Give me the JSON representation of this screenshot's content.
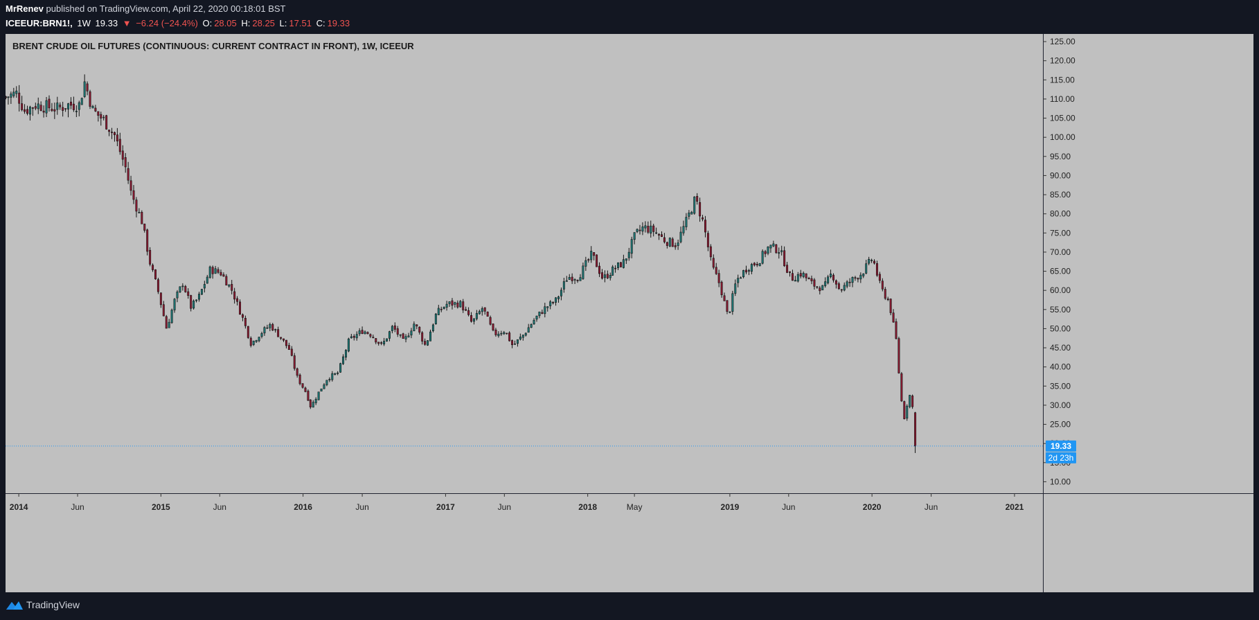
{
  "header": {
    "author": "MrRenev",
    "published": "published on TradingView.com, April 22, 2020 00:18:01 BST",
    "symbol": "ICEEUR:BRN1!,",
    "interval": "1W",
    "last": "19.33",
    "change_arrow": "▼",
    "change": "−6.24 (−24.4%)",
    "o_label": "O:",
    "o_value": "28.05",
    "h_label": "H:",
    "h_value": "28.25",
    "l_label": "L:",
    "l_value": "17.51",
    "c_label": "C:",
    "c_value": "19.33"
  },
  "footer": {
    "brand": "TradingView",
    "logo_icon": "tradingview-logo-icon"
  },
  "colors": {
    "chart_bg": "#c0c0c0",
    "candle_up": "#1e7a78",
    "candle_down": "#8e1a32",
    "price_tag": "#2196f3",
    "negative": "#ef5350"
  },
  "chart_data": {
    "type": "candlestick",
    "title": "BRENT CRUDE OIL FUTURES (CONTINUOUS: CURRENT CONTRACT IN FRONT), 1W, ICEEUR",
    "y_axis": {
      "ticks": [
        "10.00",
        "15.00",
        "20.00",
        "25.00",
        "30.00",
        "35.00",
        "40.00",
        "45.00",
        "50.00",
        "55.00",
        "60.00",
        "65.00",
        "70.00",
        "75.00",
        "80.00",
        "85.00",
        "90.00",
        "95.00",
        "100.00",
        "105.00",
        "110.00",
        "115.00",
        "120.00",
        "125.00"
      ],
      "range": [
        7,
        127
      ],
      "position": "right"
    },
    "x_axis": {
      "ticks": [
        {
          "label": "2014",
          "date": "2014-01-01"
        },
        {
          "label": "Jun",
          "date": "2014-06-01"
        },
        {
          "label": "2015",
          "date": "2015-01-01"
        },
        {
          "label": "Jun",
          "date": "2015-06-01"
        },
        {
          "label": "2016",
          "date": "2016-01-01"
        },
        {
          "label": "Jun",
          "date": "2016-06-01"
        },
        {
          "label": "2017",
          "date": "2017-01-01"
        },
        {
          "label": "Jun",
          "date": "2017-06-01"
        },
        {
          "label": "2018",
          "date": "2018-01-01"
        },
        {
          "label": "May",
          "date": "2018-05-01"
        },
        {
          "label": "2019",
          "date": "2019-01-01"
        },
        {
          "label": "Jun",
          "date": "2019-06-01"
        },
        {
          "label": "2020",
          "date": "2020-01-01"
        },
        {
          "label": "Jun",
          "date": "2020-06-01"
        },
        {
          "label": "2021",
          "date": "2021-01-01"
        }
      ],
      "range": [
        "2013-11-28",
        "2021-03-15"
      ]
    },
    "last_price": {
      "value": 19.33,
      "label": "19.33",
      "countdown": "2d 23h"
    },
    "grid": false,
    "weekly_close_path": [
      [
        "2013-11-29",
        110.5
      ],
      [
        "2013-12-27",
        111.5
      ],
      [
        "2014-01-17",
        107.0
      ],
      [
        "2014-02-14",
        108.5
      ],
      [
        "2014-03-14",
        108.0
      ],
      [
        "2014-04-11",
        107.5
      ],
      [
        "2014-05-09",
        108.5
      ],
      [
        "2014-06-06",
        108.5
      ],
      [
        "2014-06-20",
        114.5
      ],
      [
        "2014-07-11",
        107.0
      ],
      [
        "2014-08-08",
        104.5
      ],
      [
        "2014-09-05",
        100.5
      ],
      [
        "2014-10-03",
        92.0
      ],
      [
        "2014-10-17",
        85.5
      ],
      [
        "2014-11-14",
        78.0
      ],
      [
        "2014-12-05",
        67.0
      ],
      [
        "2014-12-26",
        59.5
      ],
      [
        "2015-01-16",
        50.0
      ],
      [
        "2015-02-06",
        57.5
      ],
      [
        "2015-02-27",
        62.0
      ],
      [
        "2015-03-20",
        55.5
      ],
      [
        "2015-04-10",
        58.5
      ],
      [
        "2015-05-08",
        65.5
      ],
      [
        "2015-06-05",
        64.5
      ],
      [
        "2015-07-03",
        60.0
      ],
      [
        "2015-07-31",
        52.5
      ],
      [
        "2015-08-21",
        46.0
      ],
      [
        "2015-09-11",
        48.5
      ],
      [
        "2015-10-09",
        51.0
      ],
      [
        "2015-11-06",
        47.5
      ],
      [
        "2015-11-27",
        44.5
      ],
      [
        "2015-12-18",
        37.0
      ],
      [
        "2016-01-08",
        33.5
      ],
      [
        "2016-01-22",
        29.5
      ],
      [
        "2016-02-12",
        33.5
      ],
      [
        "2016-03-04",
        37.0
      ],
      [
        "2016-04-01",
        38.5
      ],
      [
        "2016-04-29",
        47.0
      ],
      [
        "2016-06-03",
        49.5
      ],
      [
        "2016-06-24",
        48.5
      ],
      [
        "2016-07-22",
        45.5
      ],
      [
        "2016-08-19",
        50.5
      ],
      [
        "2016-09-16",
        46.5
      ],
      [
        "2016-10-14",
        51.5
      ],
      [
        "2016-11-11",
        45.5
      ],
      [
        "2016-12-09",
        54.0
      ],
      [
        "2017-01-06",
        56.5
      ],
      [
        "2017-02-10",
        56.5
      ],
      [
        "2017-03-10",
        51.5
      ],
      [
        "2017-04-07",
        55.5
      ],
      [
        "2017-05-05",
        48.5
      ],
      [
        "2017-06-02",
        49.5
      ],
      [
        "2017-06-23",
        45.5
      ],
      [
        "2017-07-21",
        48.5
      ],
      [
        "2017-08-18",
        52.5
      ],
      [
        "2017-09-15",
        55.5
      ],
      [
        "2017-10-13",
        57.5
      ],
      [
        "2017-11-10",
        63.5
      ],
      [
        "2017-12-08",
        63.5
      ],
      [
        "2018-01-12",
        69.5
      ],
      [
        "2018-02-09",
        63.0
      ],
      [
        "2018-03-09",
        65.5
      ],
      [
        "2018-04-06",
        67.5
      ],
      [
        "2018-05-04",
        74.5
      ],
      [
        "2018-05-25",
        76.5
      ],
      [
        "2018-06-22",
        75.5
      ],
      [
        "2018-07-20",
        73.0
      ],
      [
        "2018-08-17",
        72.0
      ],
      [
        "2018-09-14",
        78.5
      ],
      [
        "2018-10-05",
        84.0
      ],
      [
        "2018-10-26",
        77.5
      ],
      [
        "2018-11-16",
        66.5
      ],
      [
        "2018-12-07",
        61.5
      ],
      [
        "2018-12-28",
        53.0
      ],
      [
        "2019-01-18",
        62.5
      ],
      [
        "2019-02-15",
        66.0
      ],
      [
        "2019-03-15",
        67.5
      ],
      [
        "2019-04-12",
        71.5
      ],
      [
        "2019-05-10",
        70.5
      ],
      [
        "2019-06-07",
        63.0
      ],
      [
        "2019-07-05",
        64.5
      ],
      [
        "2019-08-02",
        61.5
      ],
      [
        "2019-08-30",
        60.5
      ],
      [
        "2019-09-20",
        64.5
      ],
      [
        "2019-10-11",
        60.0
      ],
      [
        "2019-11-08",
        62.5
      ],
      [
        "2019-12-06",
        64.5
      ],
      [
        "2020-01-03",
        68.5
      ],
      [
        "2020-01-24",
        60.5
      ],
      [
        "2020-02-14",
        57.0
      ],
      [
        "2020-03-06",
        45.5
      ],
      [
        "2020-03-13",
        33.5
      ],
      [
        "2020-03-27",
        25.0
      ],
      [
        "2020-04-03",
        34.0
      ],
      [
        "2020-04-10",
        31.5
      ],
      [
        "2020-04-17",
        28.0
      ],
      [
        "2020-04-21",
        19.33
      ]
    ],
    "candle_count": 335
  }
}
